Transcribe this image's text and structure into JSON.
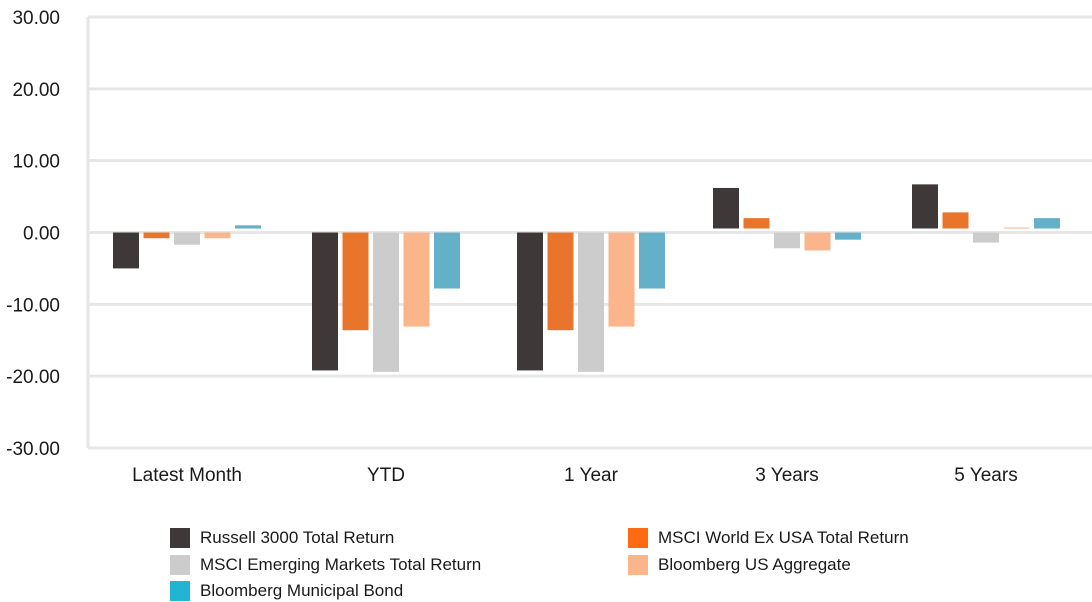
{
  "chart_data": {
    "type": "bar",
    "categories": [
      "Latest Month",
      "YTD",
      "1 Year",
      "3 Years",
      "5 Years"
    ],
    "ylim": [
      -30,
      30
    ],
    "yticks": [
      "30.00",
      "20.00",
      "10.00",
      "0.00",
      "-10.00",
      "-20.00",
      "-30.00"
    ],
    "ytick_values": [
      30,
      20,
      10,
      0,
      -10,
      -20,
      -30
    ],
    "grid": true,
    "legend_placement": "bottom",
    "series": [
      {
        "name": "Russell 3000 Total Return",
        "color": "#3e3838",
        "legend_color": "#3e3838",
        "values": [
          -5.0,
          -19.2,
          -19.2,
          6.2,
          6.7
        ]
      },
      {
        "name": "MSCI World Ex USA Total Return",
        "color": "#e8752b",
        "legend_color": "#ff6a13",
        "values": [
          -0.8,
          -13.6,
          -13.6,
          2.0,
          2.8
        ]
      },
      {
        "name": "MSCI Emerging Markets Total Return",
        "color": "#cccccc",
        "legend_color": "#cccccc",
        "values": [
          -1.7,
          -19.4,
          -19.4,
          -2.2,
          -1.4
        ]
      },
      {
        "name": "Bloomberg US Aggregate",
        "color": "#fbb58a",
        "legend_color": "#fbb58a",
        "values": [
          -0.8,
          -13.1,
          -13.1,
          -2.5,
          0.7
        ]
      },
      {
        "name": "Bloomberg Municipal Bond",
        "color": "#65b0c9",
        "legend_color": "#1fb5d3",
        "values": [
          1.0,
          -7.8,
          -7.8,
          -1.0,
          2.0
        ]
      }
    ]
  }
}
